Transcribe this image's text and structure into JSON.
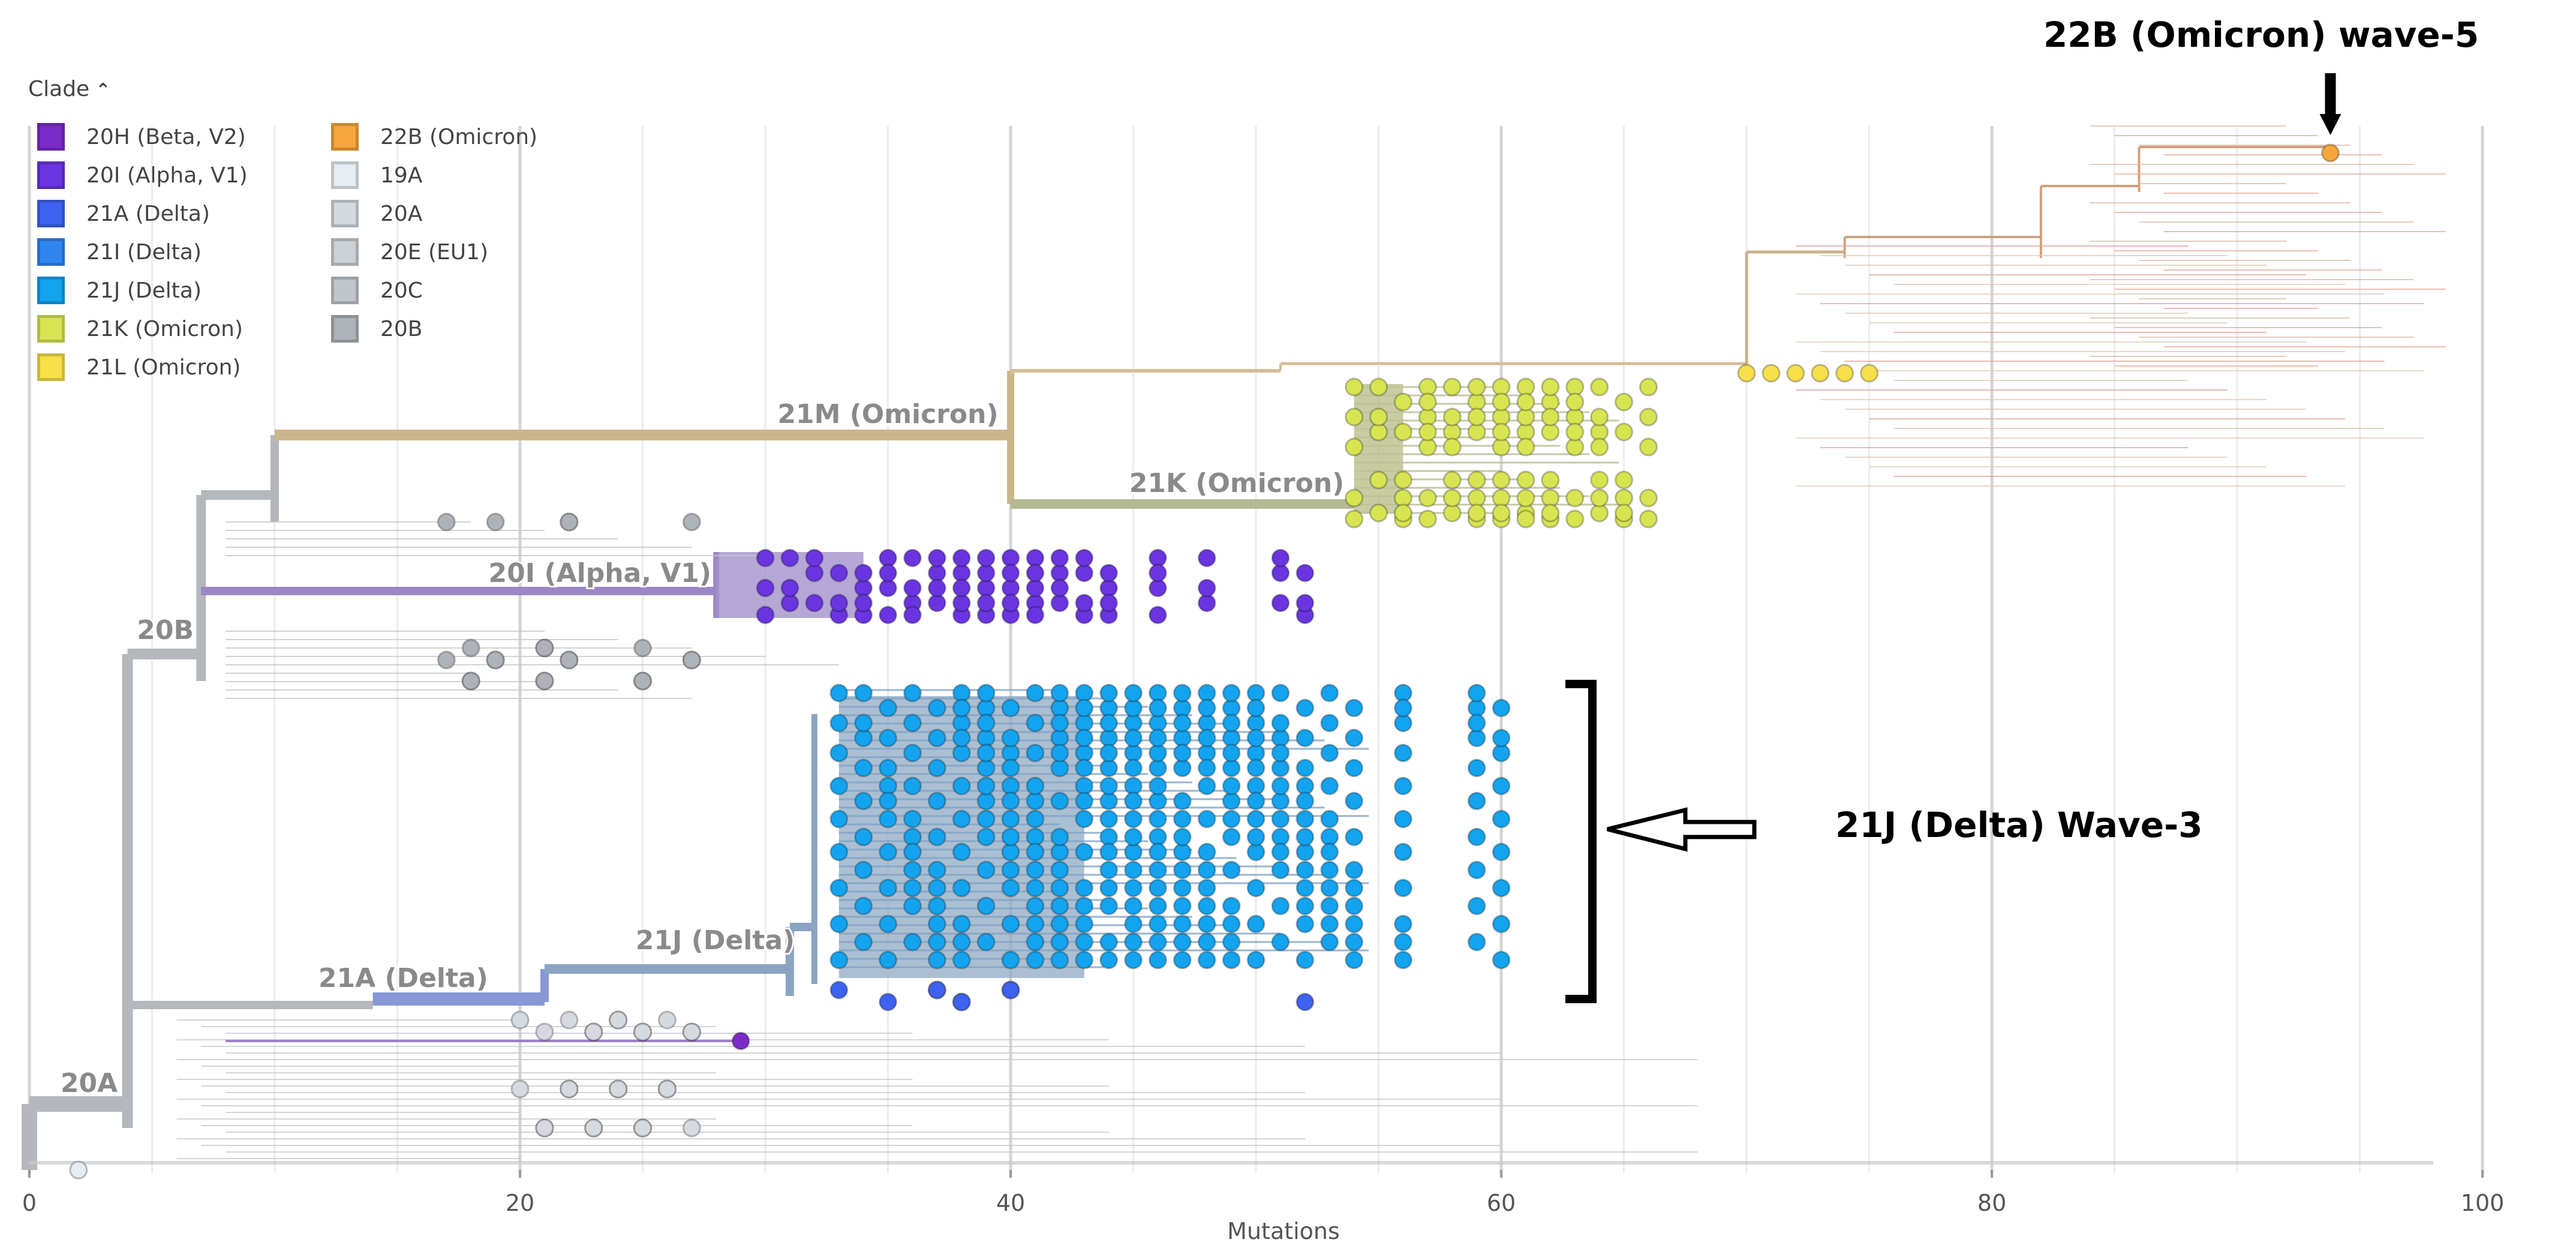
{
  "legend": {
    "title": "Clade",
    "items": [
      {
        "label": "20H (Beta, V2)",
        "color": "#7B2BC9"
      },
      {
        "label": "20I (Alpha, V1)",
        "color": "#6A35E0"
      },
      {
        "label": "21A (Delta)",
        "color": "#3E63F0"
      },
      {
        "label": "21I (Delta)",
        "color": "#2F86F0"
      },
      {
        "label": "21J (Delta)",
        "color": "#14A3EE"
      },
      {
        "label": "21K (Omicron)",
        "color": "#D7E553"
      },
      {
        "label": "21L (Omicron)",
        "color": "#F7E04B"
      },
      {
        "label": "22B (Omicron)",
        "color": "#F5A73B"
      },
      {
        "label": "19A",
        "color": "#E6EEF3"
      },
      {
        "label": "20A",
        "color": "#D4DADF"
      },
      {
        "label": "20E (EU1)",
        "color": "#CBD1D6"
      },
      {
        "label": "20C",
        "color": "#C0C6CC"
      },
      {
        "label": "20B",
        "color": "#AEB3BA"
      }
    ]
  },
  "chart_data": {
    "type": "scatter",
    "subtype": "phylogenetic-tree",
    "xlabel": "Mutations",
    "xlim": [
      0,
      101
    ],
    "xticks": [
      0,
      20,
      40,
      60,
      80,
      100
    ],
    "grid": true,
    "clade_labels": [
      {
        "text": "21M (Omicron)",
        "x": 39.5
      },
      {
        "text": "21K (Omicron)",
        "x": 53.6
      },
      {
        "text": "20I (Alpha, V1)",
        "x": 27.8
      },
      {
        "text": "20B",
        "x": 6.7
      },
      {
        "text": "21J (Delta)",
        "x": 31.2
      },
      {
        "text": "21A (Delta)",
        "x": 18.7
      },
      {
        "text": "20A",
        "x": 3.6
      }
    ],
    "annotations": [
      {
        "text": "22B (Omicron) wave-5",
        "target_x": 93.8,
        "clade": "22B (Omicron)"
      },
      {
        "text": "21J (Delta) Wave-3",
        "target_clade": "21J (Delta)"
      }
    ],
    "tips": [
      {
        "clade": "22B (Omicron)",
        "x": [
          93.8
        ]
      },
      {
        "clade": "21L (Omicron)",
        "x": [
          70,
          71,
          72,
          73,
          74,
          75
        ]
      },
      {
        "clade": "21K (Omicron)",
        "x": [
          54,
          55,
          56,
          57,
          58,
          59,
          60,
          61,
          62,
          63,
          64,
          65,
          66
        ]
      },
      {
        "clade": "20I (Alpha, V1)",
        "x": [
          30,
          31,
          32,
          33,
          34,
          35,
          36,
          37,
          38,
          39,
          40,
          41,
          42,
          43,
          44,
          46,
          48,
          51,
          52
        ]
      },
      {
        "clade": "21J (Delta)",
        "x": [
          33,
          34,
          35,
          36,
          37,
          38,
          39,
          40,
          41,
          42,
          43,
          44,
          45,
          46,
          47,
          48,
          49,
          50,
          51,
          52,
          53,
          54,
          56,
          59,
          60
        ]
      },
      {
        "clade": "21A (Delta)",
        "x": [
          33,
          35,
          37,
          38,
          40,
          52
        ]
      },
      {
        "clade": "20H (Beta, V2)",
        "x": [
          29
        ]
      },
      {
        "clade": "20B",
        "x": [
          17,
          18,
          19,
          21,
          22,
          25,
          27
        ]
      },
      {
        "clade": "20A",
        "x": [
          20,
          21,
          22,
          23,
          24,
          25,
          26,
          27
        ]
      },
      {
        "clade": "19A",
        "x": [
          2
        ]
      }
    ]
  }
}
